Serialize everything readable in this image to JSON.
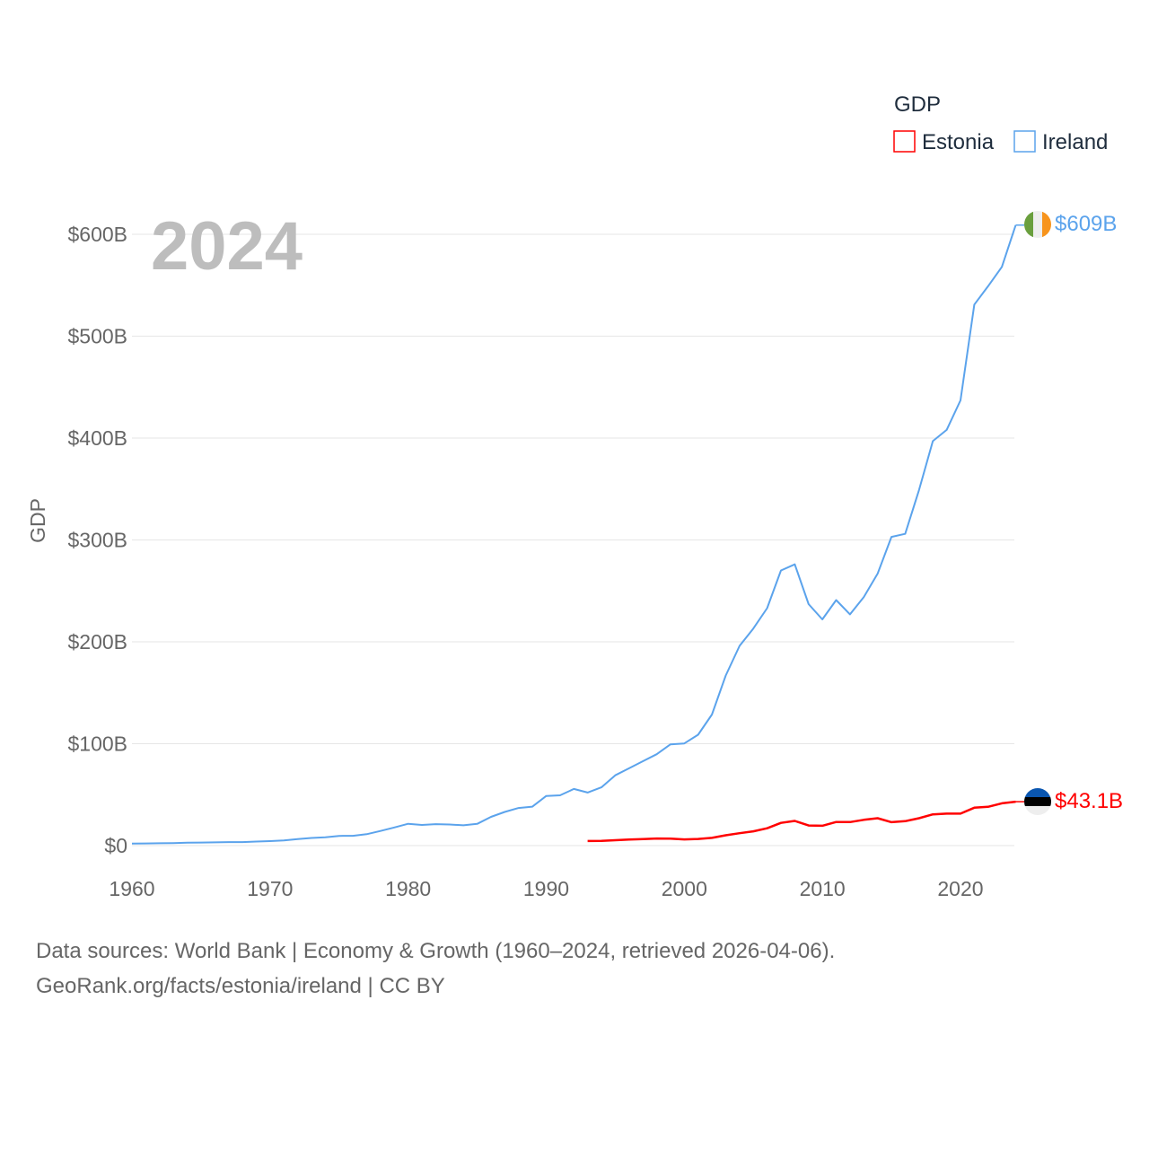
{
  "chart_data": {
    "type": "line",
    "title": "GDP",
    "year_label": "2024",
    "ylabel": "GDP",
    "xlabel": "",
    "xlim": [
      1960,
      2024
    ],
    "ylim": [
      0,
      600
    ],
    "x_ticks": [
      "1960",
      "1970",
      "1980",
      "1990",
      "2000",
      "2010",
      "2020"
    ],
    "y_ticks": [
      "$0",
      "$100B",
      "$200B",
      "$300B",
      "$400B",
      "$500B",
      "$600B"
    ],
    "grid": true,
    "legend_position": "top-right",
    "series": [
      {
        "name": "Estonia",
        "color": "#ff0000",
        "end_label": "$43.1B",
        "start_year": 1993,
        "values": [
          4.5,
          4.6,
          5.3,
          5.9,
          6.4,
          7.0,
          6.8,
          6.1,
          6.5,
          7.6,
          10.1,
          12.2,
          14.0,
          17.0,
          22.3,
          24.2,
          19.7,
          19.5,
          23.2,
          23.1,
          25.3,
          26.9,
          23.0,
          24.0,
          26.9,
          30.7,
          31.4,
          31.4,
          37.2,
          38.1,
          41.5,
          43.1
        ]
      },
      {
        "name": "Ireland",
        "color": "#5ba3ec",
        "end_label": "$609B",
        "start_year": 1960,
        "values": [
          1.9,
          2.1,
          2.3,
          2.5,
          2.8,
          3.0,
          3.2,
          3.4,
          3.4,
          4.0,
          4.4,
          5.0,
          6.3,
          7.5,
          8.1,
          9.5,
          9.6,
          11.2,
          14.4,
          17.8,
          21.4,
          20.3,
          21.1,
          20.7,
          19.9,
          21.3,
          28.2,
          33.0,
          36.9,
          38.2,
          48.7,
          49.3,
          55.6,
          52.1,
          57.2,
          69.0,
          75.9,
          82.8,
          89.7,
          99.4,
          100.3,
          108.8,
          128.6,
          167,
          196,
          213,
          233,
          270,
          276,
          237,
          222,
          241,
          227,
          244,
          267,
          303,
          306,
          349,
          397,
          408,
          437,
          531,
          549,
          568,
          609
        ]
      }
    ]
  },
  "source": {
    "line1": "Data sources: World Bank | Economy & Growth (1960–2024, retrieved 2026-04-06).",
    "line2": "GeoRank.org/facts/estonia/ireland | CC BY"
  }
}
